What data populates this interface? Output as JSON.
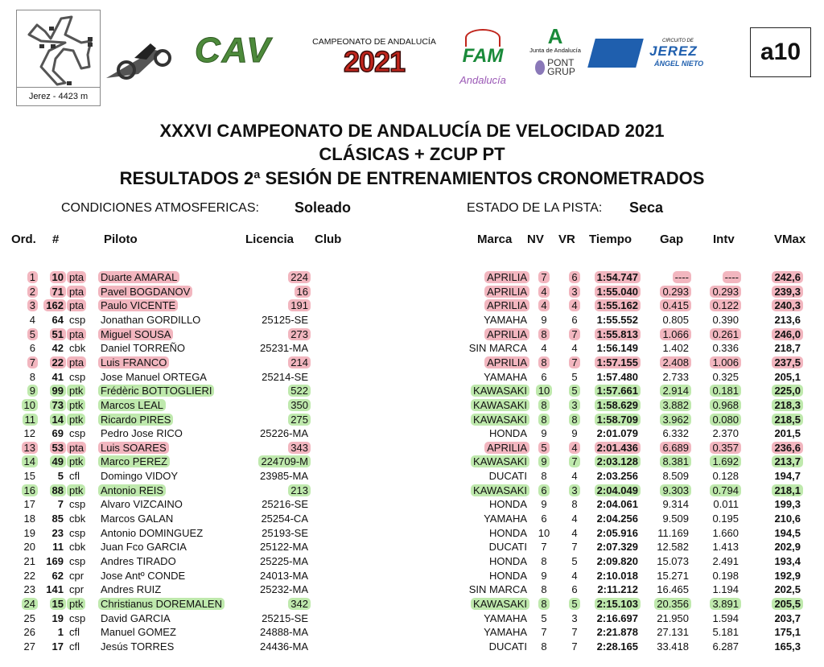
{
  "header": {
    "track_caption": "Jerez - 4423 m",
    "logos": {
      "cav": "CAV",
      "campeonato_caption": "CAMPEONATO DE ANDALUCÍA",
      "campeonato_year": "2021",
      "fam": "FAM",
      "andalucia": "Andalucía",
      "junta": "Junta de Andalucía",
      "pont": "PONT",
      "grup": "GRUP",
      "circuito": "CIRCUITO DE",
      "jerez": "JEREZ",
      "angel": "ÁNGEL NIETO"
    },
    "doc_code": "a10"
  },
  "titles": {
    "line1": "XXXVI CAMPEONATO DE ANDALUCÍA DE VELOCIDAD 2021",
    "line2": "CLÁSICAS + ZCUP PT",
    "line3": "RESULTADOS 2ª SESIÓN DE ENTRENAMIENTOS CRONOMETRADOS"
  },
  "conditions": {
    "weather_label": "CONDICIONES ATMOSFERICAS:",
    "weather_value": "Soleado",
    "track_label": "ESTADO DE LA PISTA:",
    "track_value": "Seca"
  },
  "colors": {
    "pink_highlight": "#f2b6bf",
    "green_highlight": "#bfe9ad"
  },
  "columns": {
    "ord": "Ord.",
    "num": "#",
    "piloto": "Piloto",
    "licencia": "Licencia",
    "club": "Club",
    "marca": "Marca",
    "nv": "NV",
    "vr": "VR",
    "tiempo": "Tiempo",
    "gap": "Gap",
    "intv": "Intv",
    "vmax": "VMax"
  },
  "rows": [
    {
      "ord": "1",
      "num": "10",
      "cls": "pta",
      "piloto": "Duarte AMARAL",
      "licencia": "224",
      "marca": "APRILIA",
      "nv": "7",
      "vr": "6",
      "tiempo": "1:54.747",
      "gap": "----",
      "intv": "----",
      "vmax": "242,6",
      "hl": "pink"
    },
    {
      "ord": "2",
      "num": "71",
      "cls": "pta",
      "piloto": "Pavel BOGDANOV",
      "licencia": "16",
      "marca": "APRILIA",
      "nv": "4",
      "vr": "3",
      "tiempo": "1:55.040",
      "gap": "0.293",
      "intv": "0.293",
      "vmax": "239,3",
      "hl": "pink"
    },
    {
      "ord": "3",
      "num": "162",
      "cls": "pta",
      "piloto": "Paulo VICENTE",
      "licencia": "191",
      "marca": "APRILIA",
      "nv": "4",
      "vr": "4",
      "tiempo": "1:55.162",
      "gap": "0.415",
      "intv": "0.122",
      "vmax": "240,3",
      "hl": "pink"
    },
    {
      "ord": "4",
      "num": "64",
      "cls": "csp",
      "piloto": "Jonathan GORDILLO",
      "licencia": "25125-SE",
      "marca": "YAMAHA",
      "nv": "9",
      "vr": "6",
      "tiempo": "1:55.552",
      "gap": "0.805",
      "intv": "0.390",
      "vmax": "213,6",
      "hl": ""
    },
    {
      "ord": "5",
      "num": "51",
      "cls": "pta",
      "piloto": "Miguel SOUSA",
      "licencia": "273",
      "marca": "APRILIA",
      "nv": "8",
      "vr": "7",
      "tiempo": "1:55.813",
      "gap": "1.066",
      "intv": "0.261",
      "vmax": "246,0",
      "hl": "pink"
    },
    {
      "ord": "6",
      "num": "42",
      "cls": "cbk",
      "piloto": "Daniel TORREÑO",
      "licencia": "25231-MA",
      "marca": "SIN MARCA",
      "nv": "4",
      "vr": "4",
      "tiempo": "1:56.149",
      "gap": "1.402",
      "intv": "0.336",
      "vmax": "218,7",
      "hl": ""
    },
    {
      "ord": "7",
      "num": "22",
      "cls": "pta",
      "piloto": "Luis FRANCO",
      "licencia": "214",
      "marca": "APRILIA",
      "nv": "8",
      "vr": "7",
      "tiempo": "1:57.155",
      "gap": "2.408",
      "intv": "1.006",
      "vmax": "237,5",
      "hl": "pink"
    },
    {
      "ord": "8",
      "num": "41",
      "cls": "csp",
      "piloto": "Jose Manuel ORTEGA",
      "licencia": "25214-SE",
      "marca": "YAMAHA",
      "nv": "6",
      "vr": "5",
      "tiempo": "1:57.480",
      "gap": "2.733",
      "intv": "0.325",
      "vmax": "205,1",
      "hl": ""
    },
    {
      "ord": "9",
      "num": "99",
      "cls": "ptk",
      "piloto": "Frédèric BOTTOGLIERI",
      "licencia": "522",
      "marca": "KAWASAKI",
      "nv": "10",
      "vr": "5",
      "tiempo": "1:57.661",
      "gap": "2.914",
      "intv": "0.181",
      "vmax": "225,0",
      "hl": "green"
    },
    {
      "ord": "10",
      "num": "73",
      "cls": "ptk",
      "piloto": "Marcos LEAL",
      "licencia": "350",
      "marca": "KAWASAKI",
      "nv": "8",
      "vr": "3",
      "tiempo": "1:58.629",
      "gap": "3.882",
      "intv": "0.968",
      "vmax": "218,3",
      "hl": "green"
    },
    {
      "ord": "11",
      "num": "14",
      "cls": "ptk",
      "piloto": "Ricardo PIRES",
      "licencia": "275",
      "marca": "KAWASAKI",
      "nv": "8",
      "vr": "8",
      "tiempo": "1:58.709",
      "gap": "3.962",
      "intv": "0.080",
      "vmax": "218,5",
      "hl": "green"
    },
    {
      "ord": "12",
      "num": "69",
      "cls": "csp",
      "piloto": "Pedro Jose RICO",
      "licencia": "25226-MA",
      "marca": "HONDA",
      "nv": "9",
      "vr": "9",
      "tiempo": "2:01.079",
      "gap": "6.332",
      "intv": "2.370",
      "vmax": "201,5",
      "hl": ""
    },
    {
      "ord": "13",
      "num": "53",
      "cls": "pta",
      "piloto": "Luis SOARES",
      "licencia": "343",
      "marca": "APRILIA",
      "nv": "5",
      "vr": "4",
      "tiempo": "2:01.436",
      "gap": "6.689",
      "intv": "0.357",
      "vmax": "236,6",
      "hl": "pink"
    },
    {
      "ord": "14",
      "num": "49",
      "cls": "ptk",
      "piloto": "Marco PEREZ",
      "licencia": "224709-M",
      "marca": "KAWASAKI",
      "nv": "9",
      "vr": "7",
      "tiempo": "2:03.128",
      "gap": "8.381",
      "intv": "1.692",
      "vmax": "213,7",
      "hl": "green"
    },
    {
      "ord": "15",
      "num": "5",
      "cls": "cfl",
      "piloto": "Domingo VIDOY",
      "licencia": "23985-MA",
      "marca": "DUCATI",
      "nv": "8",
      "vr": "4",
      "tiempo": "2:03.256",
      "gap": "8.509",
      "intv": "0.128",
      "vmax": "194,7",
      "hl": ""
    },
    {
      "ord": "16",
      "num": "88",
      "cls": "ptk",
      "piloto": "Antonio REIS",
      "licencia": "213",
      "marca": "KAWASAKI",
      "nv": "6",
      "vr": "3",
      "tiempo": "2:04.049",
      "gap": "9.303",
      "intv": "0.794",
      "vmax": "218,1",
      "hl": "green"
    },
    {
      "ord": "17",
      "num": "7",
      "cls": "csp",
      "piloto": "Alvaro VIZCAINO",
      "licencia": "25216-SE",
      "marca": "HONDA",
      "nv": "9",
      "vr": "8",
      "tiempo": "2:04.061",
      "gap": "9.314",
      "intv": "0.011",
      "vmax": "199,3",
      "hl": ""
    },
    {
      "ord": "18",
      "num": "85",
      "cls": "cbk",
      "piloto": "Marcos GALAN",
      "licencia": "25254-CA",
      "marca": "YAMAHA",
      "nv": "6",
      "vr": "4",
      "tiempo": "2:04.256",
      "gap": "9.509",
      "intv": "0.195",
      "vmax": "210,6",
      "hl": ""
    },
    {
      "ord": "19",
      "num": "23",
      "cls": "csp",
      "piloto": "Antonio DOMINGUEZ",
      "licencia": "25193-SE",
      "marca": "HONDA",
      "nv": "10",
      "vr": "4",
      "tiempo": "2:05.916",
      "gap": "11.169",
      "intv": "1.660",
      "vmax": "194,5",
      "hl": ""
    },
    {
      "ord": "20",
      "num": "11",
      "cls": "cbk",
      "piloto": "Juan Fco GARCIA",
      "licencia": "25122-MA",
      "marca": "DUCATI",
      "nv": "7",
      "vr": "7",
      "tiempo": "2:07.329",
      "gap": "12.582",
      "intv": "1.413",
      "vmax": "202,9",
      "hl": ""
    },
    {
      "ord": "21",
      "num": "169",
      "cls": "csp",
      "piloto": "Andres TIRADO",
      "licencia": "25225-MA",
      "marca": "HONDA",
      "nv": "8",
      "vr": "5",
      "tiempo": "2:09.820",
      "gap": "15.073",
      "intv": "2.491",
      "vmax": "193,4",
      "hl": ""
    },
    {
      "ord": "22",
      "num": "62",
      "cls": "cpr",
      "piloto": "Jose Antº CONDE",
      "licencia": "24013-MA",
      "marca": "HONDA",
      "nv": "9",
      "vr": "4",
      "tiempo": "2:10.018",
      "gap": "15.271",
      "intv": "0.198",
      "vmax": "192,9",
      "hl": ""
    },
    {
      "ord": "23",
      "num": "141",
      "cls": "cpr",
      "piloto": "Andres RUIZ",
      "licencia": "25232-MA",
      "marca": "SIN MARCA",
      "nv": "8",
      "vr": "6",
      "tiempo": "2:11.212",
      "gap": "16.465",
      "intv": "1.194",
      "vmax": "202,5",
      "hl": ""
    },
    {
      "ord": "24",
      "num": "15",
      "cls": "ptk",
      "piloto": "Christianus DOREMALEN",
      "licencia": "342",
      "marca": "KAWASAKI",
      "nv": "8",
      "vr": "5",
      "tiempo": "2:15.103",
      "gap": "20.356",
      "intv": "3.891",
      "vmax": "205,5",
      "hl": "green"
    },
    {
      "ord": "25",
      "num": "19",
      "cls": "csp",
      "piloto": "David GARCIA",
      "licencia": "25215-SE",
      "marca": "YAMAHA",
      "nv": "5",
      "vr": "3",
      "tiempo": "2:16.697",
      "gap": "21.950",
      "intv": "1.594",
      "vmax": "203,7",
      "hl": ""
    },
    {
      "ord": "26",
      "num": "1",
      "cls": "cfl",
      "piloto": "Manuel GOMEZ",
      "licencia": "24888-MA",
      "marca": "YAMAHA",
      "nv": "7",
      "vr": "7",
      "tiempo": "2:21.878",
      "gap": "27.131",
      "intv": "5.181",
      "vmax": "175,1",
      "hl": ""
    },
    {
      "ord": "27",
      "num": "17",
      "cls": "cfl",
      "piloto": "Jesús TORRES",
      "licencia": "24436-MA",
      "marca": "DUCATI",
      "nv": "8",
      "vr": "7",
      "tiempo": "2:28.165",
      "gap": "33.418",
      "intv": "6.287",
      "vmax": "165,3",
      "hl": ""
    }
  ]
}
